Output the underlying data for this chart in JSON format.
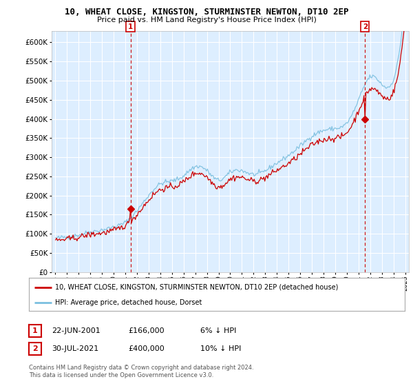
{
  "title": "10, WHEAT CLOSE, KINGSTON, STURMINSTER NEWTON, DT10 2EP",
  "subtitle": "Price paid vs. HM Land Registry's House Price Index (HPI)",
  "ylim": [
    0,
    630000
  ],
  "yticks": [
    0,
    50000,
    100000,
    150000,
    200000,
    250000,
    300000,
    350000,
    400000,
    450000,
    500000,
    550000,
    600000
  ],
  "hpi_color": "#7bbfdf",
  "price_color": "#cc0000",
  "transaction1": {
    "label": "1",
    "date": "22-JUN-2001",
    "price": "£166,000",
    "hpi": "6% ↓ HPI"
  },
  "transaction2": {
    "label": "2",
    "date": "30-JUL-2021",
    "price": "£400,000",
    "hpi": "10% ↓ HPI"
  },
  "legend_line1": "10, WHEAT CLOSE, KINGSTON, STURMINSTER NEWTON, DT10 2EP (detached house)",
  "legend_line2": "HPI: Average price, detached house, Dorset",
  "footnote": "Contains HM Land Registry data © Crown copyright and database right 2024.\nThis data is licensed under the Open Government Licence v3.0.",
  "background_color": "#ffffff",
  "plot_bg_color": "#ddeeff",
  "grid_color": "#ffffff"
}
